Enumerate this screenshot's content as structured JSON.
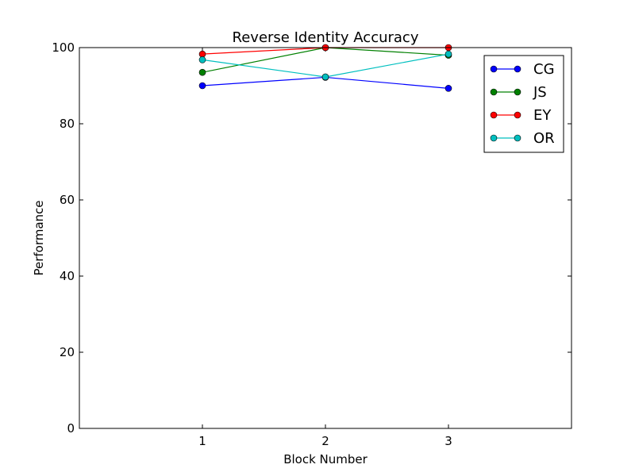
{
  "chart_data": {
    "type": "line",
    "title": "Reverse Identity Accuracy",
    "xlabel": "Block Number",
    "ylabel": "Performance",
    "x": [
      1,
      2,
      3
    ],
    "xlim": [
      0,
      4
    ],
    "ylim": [
      0,
      100
    ],
    "xticks": [
      "1",
      "2",
      "3"
    ],
    "yticks": [
      "0",
      "20",
      "40",
      "60",
      "80",
      "100"
    ],
    "grid": false,
    "legend_position": "top-right",
    "series": [
      {
        "name": "CG",
        "color": "#0000ff",
        "values": [
          90.0,
          92.2,
          89.3
        ]
      },
      {
        "name": "JS",
        "color": "#008000",
        "values": [
          93.5,
          100.0,
          98.0
        ]
      },
      {
        "name": "EY",
        "color": "#ff0000",
        "values": [
          98.3,
          100.0,
          100.0
        ]
      },
      {
        "name": "OR",
        "color": "#00bfbf",
        "values": [
          96.8,
          92.3,
          98.3
        ]
      }
    ]
  }
}
